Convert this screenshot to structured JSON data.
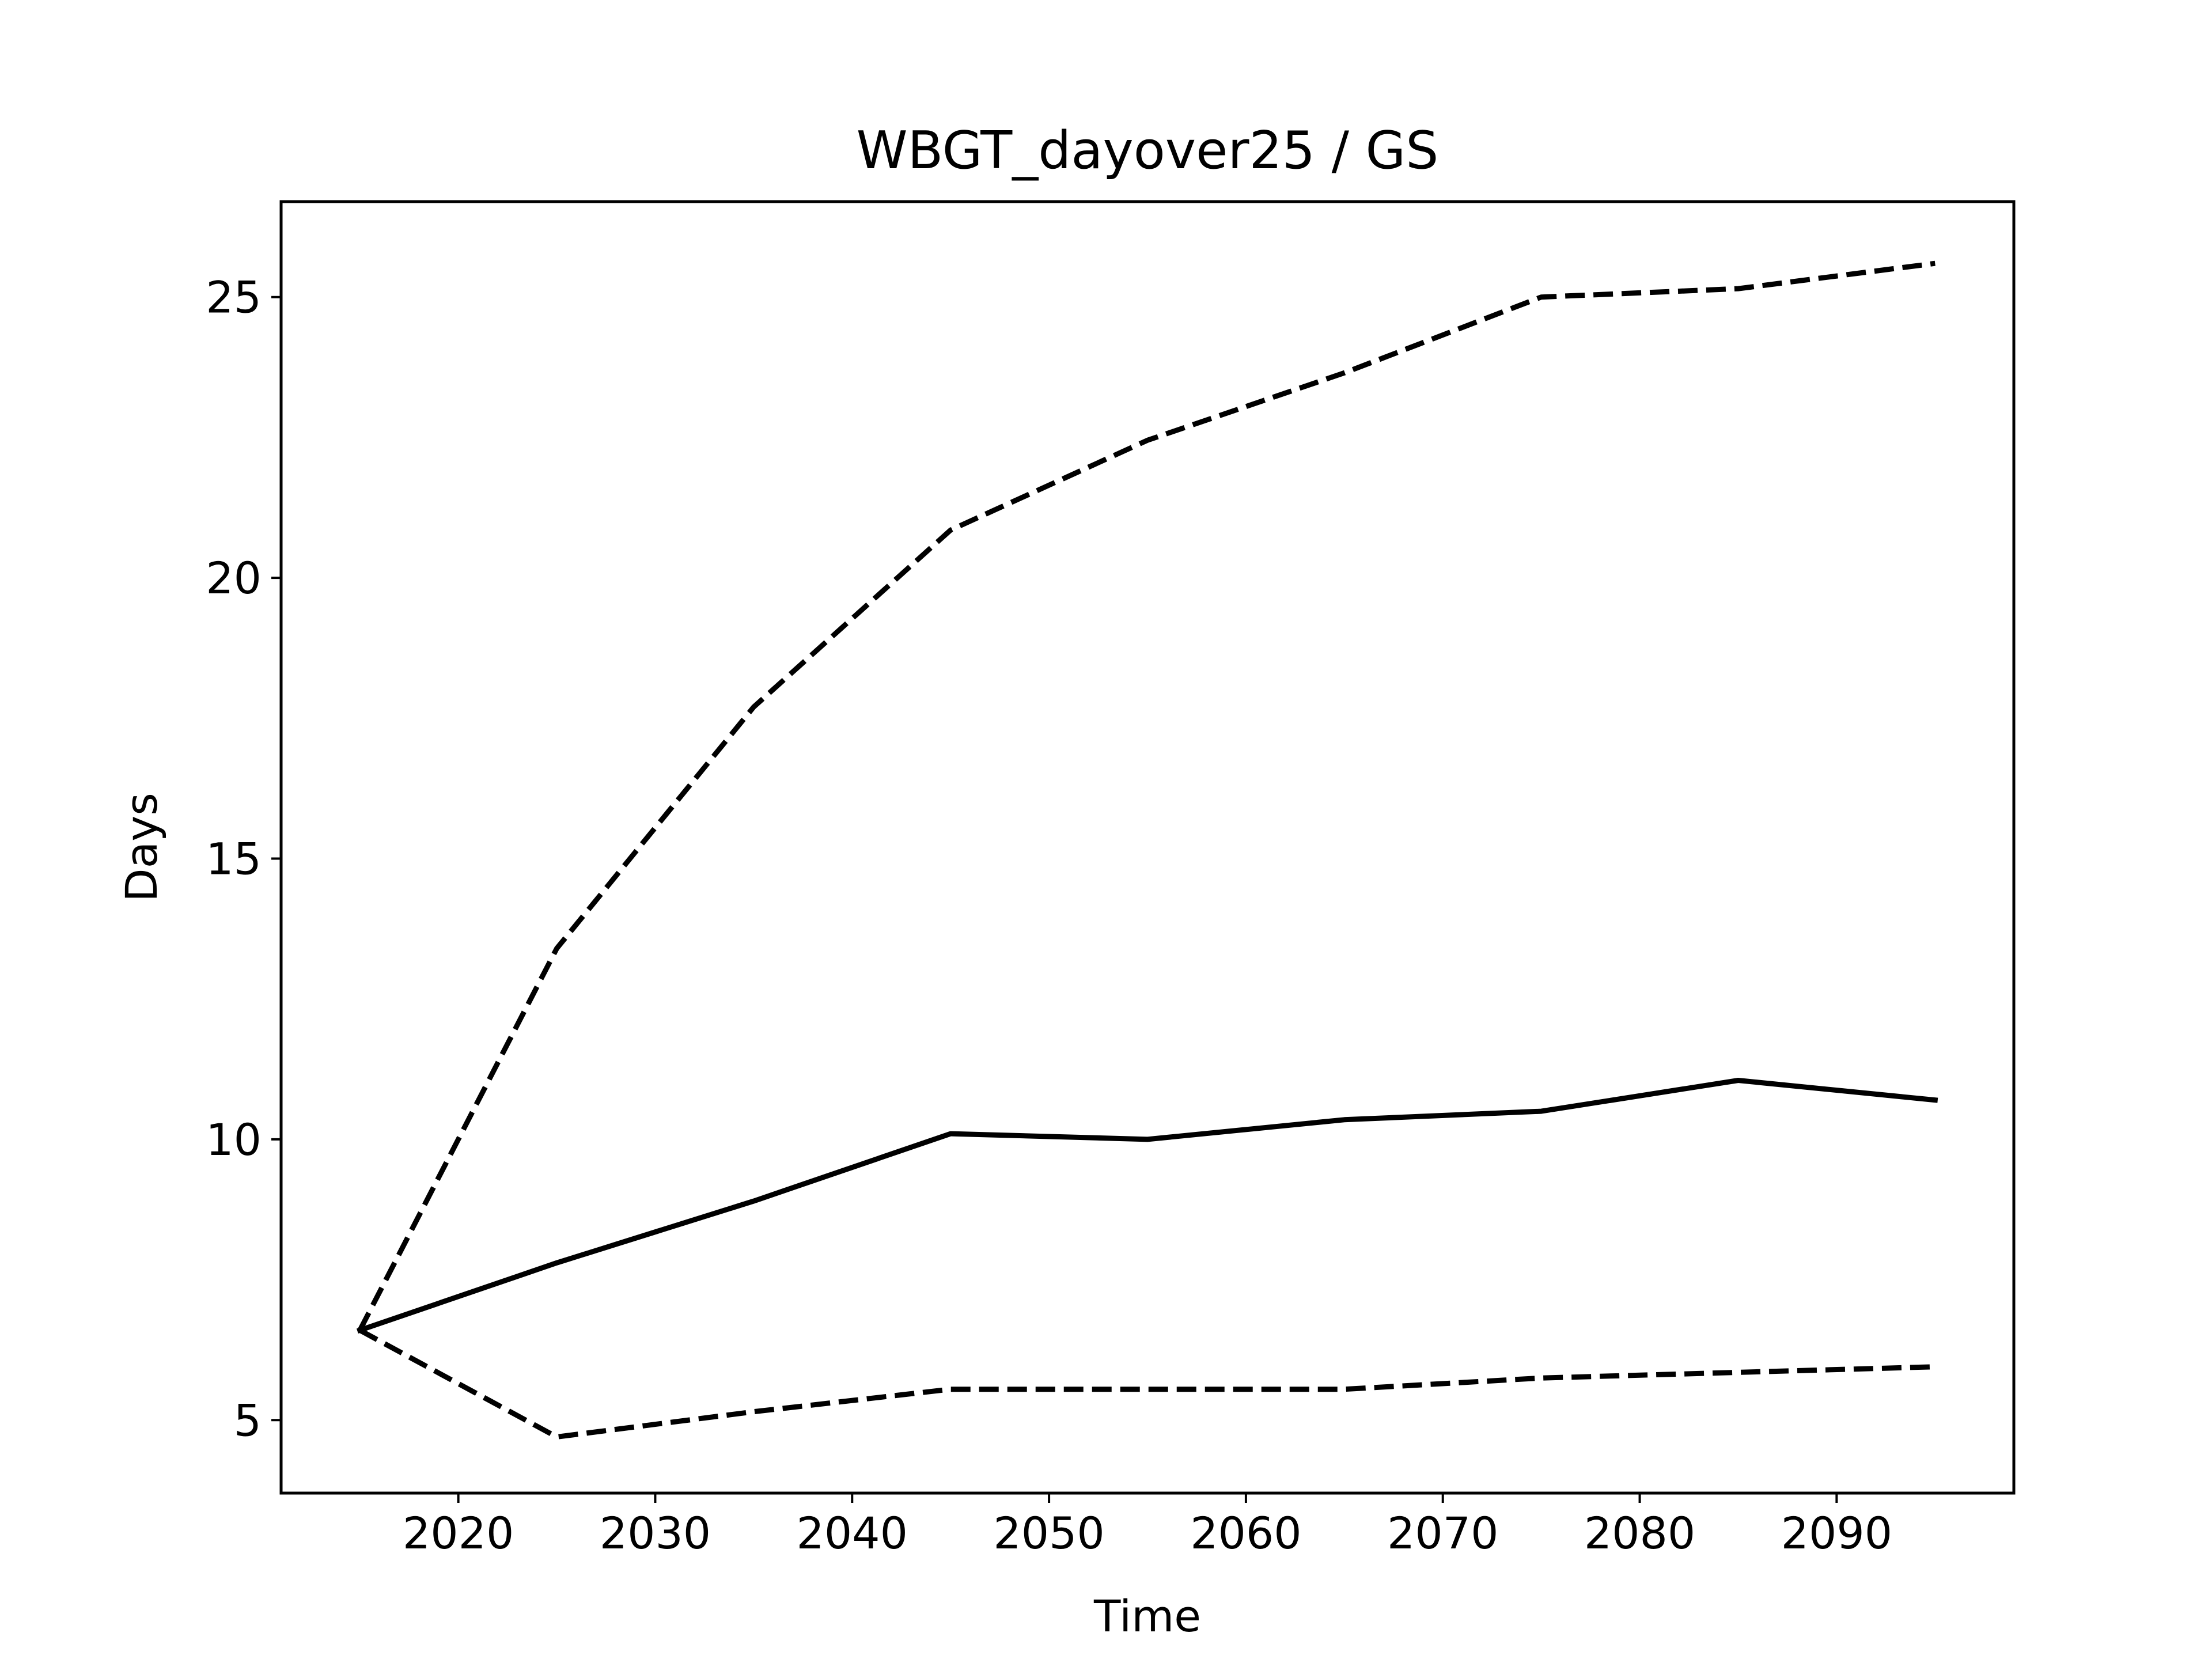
{
  "chart_data": {
    "type": "line",
    "title": "WBGT_dayover25 / GS",
    "xlabel": "Time",
    "ylabel": "Days",
    "xlim": [
      2011,
      2099
    ],
    "ylim": [
      3.7,
      26.7
    ],
    "xticks": [
      2020,
      2030,
      2040,
      2050,
      2060,
      2070,
      2080,
      2090
    ],
    "yticks": [
      5,
      10,
      15,
      20,
      25
    ],
    "grid": false,
    "x": [
      2015,
      2025,
      2035,
      2045,
      2055,
      2065,
      2075,
      2085,
      2095
    ],
    "series": [
      {
        "style": "solid",
        "color": "#000000",
        "values": [
          6.6,
          7.8,
          8.9,
          10.1,
          10.0,
          10.35,
          10.5,
          11.05,
          10.7
        ]
      },
      {
        "style": "dashed",
        "color": "#000000",
        "values": [
          6.6,
          13.4,
          17.7,
          20.85,
          22.45,
          23.65,
          25.0,
          25.15,
          25.6
        ]
      },
      {
        "style": "dashed",
        "color": "#000000",
        "values": [
          6.6,
          4.7,
          5.15,
          5.55,
          5.55,
          5.55,
          5.75,
          5.85,
          5.95
        ]
      }
    ]
  }
}
